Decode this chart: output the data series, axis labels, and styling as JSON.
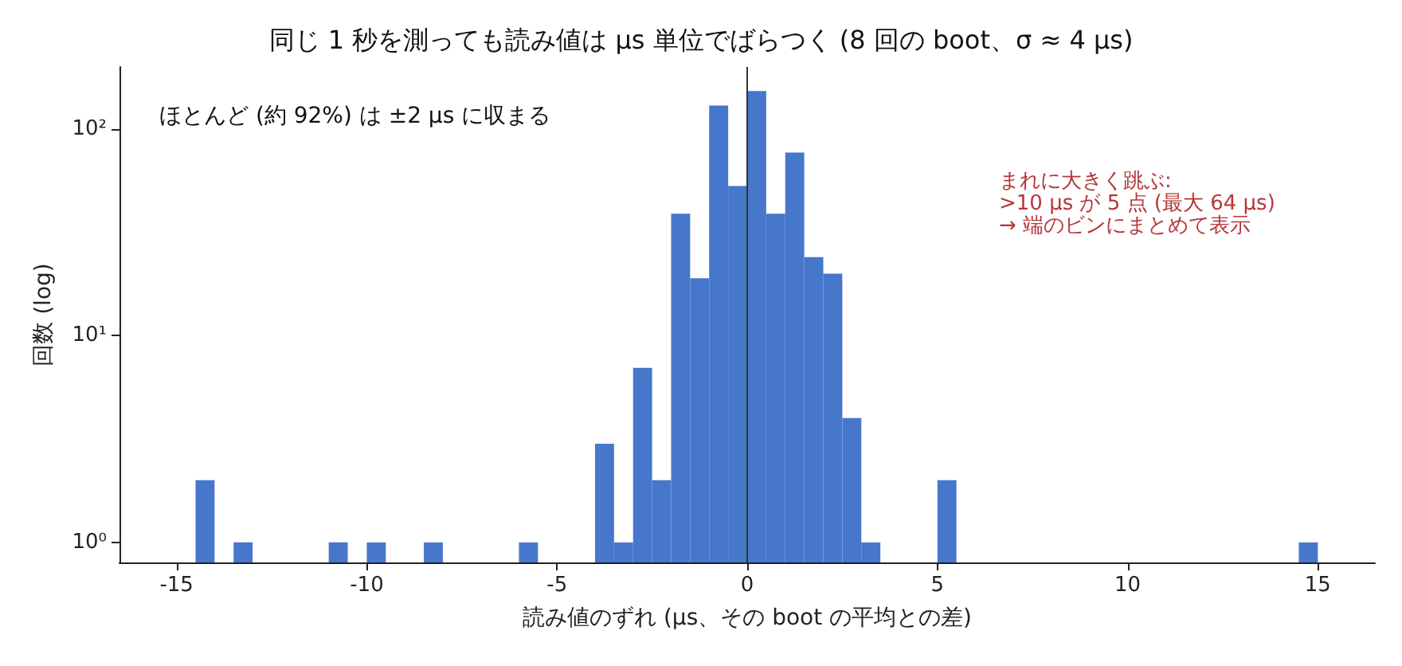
{
  "chart_data": {
    "type": "histogram",
    "title": "同じ 1 秒を測っても読み値は µs 単位でばらつく (8 回の boot、σ ≈ 4 µs)",
    "xlabel": "読み値のずれ (µs、その boot の平均との差)",
    "ylabel": "回数 (log)",
    "bins": [
      -15,
      -14.5,
      -14,
      -13.5,
      -13,
      -12.5,
      -12,
      -11.5,
      -11,
      -10.5,
      -10,
      -9.5,
      -9,
      -8.5,
      -8,
      -7.5,
      -7,
      -6.5,
      -6,
      -5.5,
      -5,
      -4.5,
      -4,
      -3.5,
      -3,
      -2.5,
      -2,
      -1.5,
      -1,
      -0.5,
      0,
      0.5,
      1,
      1.5,
      2,
      2.5,
      3,
      3.5,
      4,
      4.5,
      5,
      5.5,
      6,
      6.5,
      7,
      7.5,
      8,
      8.5,
      9,
      9.5,
      10,
      10.5,
      11,
      11.5,
      12,
      12.5,
      13,
      13.5,
      14,
      14.5,
      15
    ],
    "values": [
      null,
      2,
      null,
      1,
      null,
      null,
      null,
      null,
      1,
      null,
      1,
      null,
      null,
      1,
      null,
      null,
      null,
      null,
      1,
      null,
      null,
      null,
      3,
      1,
      7,
      2,
      39,
      19,
      130,
      53,
      153,
      39,
      77,
      24,
      20,
      4,
      1,
      null,
      null,
      null,
      2,
      null,
      null,
      null,
      null,
      null,
      null,
      null,
      null,
      null,
      null,
      null,
      null,
      null,
      null,
      null,
      null,
      null,
      null,
      1
    ],
    "color": "#4677cb",
    "log": "y",
    "xlim": [
      -16.5,
      16.5
    ],
    "xticks": [
      -15,
      -10,
      -5,
      0,
      5,
      10,
      15
    ],
    "ylim": [
      0.8,
      200
    ],
    "yticks": [
      {
        "value": 1,
        "label": "10⁰"
      },
      {
        "value": 10,
        "label": "10¹"
      },
      {
        "value": 100,
        "label": "10²"
      }
    ],
    "ref_lines": [
      {
        "axis": "x",
        "value": 0,
        "color": "#333333"
      }
    ],
    "annotations": [
      "ほとんど (約 92%) は ±2 µs に収まる",
      "まれに大きく跳ぶ:\n>10 µs が 5 点 (最大 64 µs)\n→ 端のビンにまとめて表示"
    ],
    "grid": false
  }
}
